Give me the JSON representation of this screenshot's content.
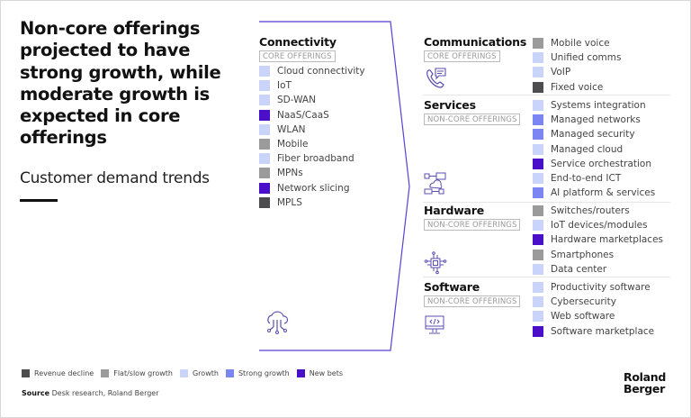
{
  "title": "Non-core offerings projected to have strong growth, while moderate growth is expected in core offerings",
  "subtitle": "Customer demand trends",
  "colors": {
    "revenue_decline": "#4d4d4f",
    "flat_slow_growth": "#9b9b9b",
    "growth": "#cad4fb",
    "strong_growth": "#7b86f2",
    "new_bets": "#4a0fc8",
    "arrow": "#5b3fd6"
  },
  "connectivity": {
    "title": "Connectivity",
    "tag": "CORE OFFERINGS",
    "icon": "cloud-network-icon",
    "items": [
      {
        "label": "Cloud connectivity",
        "trend": "growth"
      },
      {
        "label": "IoT",
        "trend": "growth"
      },
      {
        "label": "SD-WAN",
        "trend": "growth"
      },
      {
        "label": "NaaS/CaaS",
        "trend": "new_bets"
      },
      {
        "label": "WLAN",
        "trend": "growth"
      },
      {
        "label": "Mobile",
        "trend": "flat_slow_growth"
      },
      {
        "label": "Fiber broadband",
        "trend": "growth"
      },
      {
        "label": "MPNs",
        "trend": "flat_slow_growth"
      },
      {
        "label": "Network slicing",
        "trend": "new_bets"
      },
      {
        "label": "MPLS",
        "trend": "revenue_decline"
      }
    ]
  },
  "sections": [
    {
      "title": "Communications",
      "tag": "CORE OFFERINGS",
      "icon": "phone-chat-icon",
      "items": [
        {
          "label": "Mobile voice",
          "trend": "flat_slow_growth"
        },
        {
          "label": "Unified comms",
          "trend": "growth"
        },
        {
          "label": "VoIP",
          "trend": "growth"
        },
        {
          "label": "Fixed voice",
          "trend": "revenue_decline"
        }
      ]
    },
    {
      "title": "Services",
      "tag": "NON-CORE OFFERINGS",
      "icon": "network-devices-icon",
      "items": [
        {
          "label": "Systems integration",
          "trend": "growth"
        },
        {
          "label": "Managed networks",
          "trend": "strong_growth"
        },
        {
          "label": "Managed security",
          "trend": "strong_growth"
        },
        {
          "label": "Managed cloud",
          "trend": "growth"
        },
        {
          "label": "Service orchestration",
          "trend": "new_bets"
        },
        {
          "label": "End-to-end ICT",
          "trend": "growth"
        },
        {
          "label": "AI platform & services",
          "trend": "strong_growth"
        }
      ]
    },
    {
      "title": "Hardware",
      "tag": "NON-CORE OFFERINGS",
      "icon": "chip-icon",
      "items": [
        {
          "label": "Switches/routers",
          "trend": "flat_slow_growth"
        },
        {
          "label": "IoT devices/modules",
          "trend": "growth"
        },
        {
          "label": "Hardware marketplaces",
          "trend": "new_bets"
        },
        {
          "label": "Smartphones",
          "trend": "flat_slow_growth"
        },
        {
          "label": "Data center",
          "trend": "growth"
        }
      ]
    },
    {
      "title": "Software",
      "tag": "NON-CORE OFFERINGS",
      "icon": "monitor-code-icon",
      "items": [
        {
          "label": "Productivity software",
          "trend": "growth"
        },
        {
          "label": "Cybersecurity",
          "trend": "growth"
        },
        {
          "label": "Web software",
          "trend": "growth"
        },
        {
          "label": "Software marketplace",
          "trend": "new_bets"
        }
      ]
    }
  ],
  "legend": [
    {
      "label": "Revenue decline",
      "trend": "revenue_decline"
    },
    {
      "label": "Flat/slow growth",
      "trend": "flat_slow_growth"
    },
    {
      "label": "Growth",
      "trend": "growth"
    },
    {
      "label": "Strong growth",
      "trend": "strong_growth"
    },
    {
      "label": "New bets",
      "trend": "new_bets"
    }
  ],
  "source": {
    "label": "Source",
    "text": "Desk research, Roland Berger"
  },
  "logo": {
    "line1": "Roland",
    "line2": "Berger"
  }
}
